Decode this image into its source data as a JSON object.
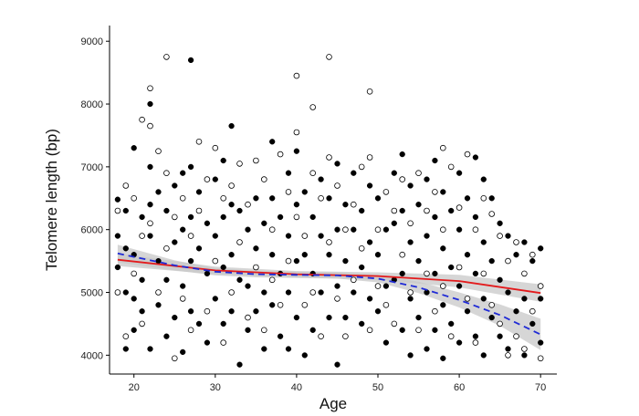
{
  "chart_data": {
    "type": "scatter",
    "xlabel": "Age",
    "ylabel": "Telomere length (bp)",
    "xlim": [
      17,
      72
    ],
    "ylim": [
      3700,
      9250
    ],
    "xticks": [
      20,
      30,
      40,
      50,
      60,
      70
    ],
    "yticks": [
      4000,
      5000,
      6000,
      7000,
      8000,
      9000
    ],
    "grid": false,
    "series": [
      {
        "marker": "filled-circle",
        "color": "#000000",
        "points": [
          [
            18,
            6480
          ],
          [
            18,
            5900
          ],
          [
            18,
            5400
          ],
          [
            19,
            6300
          ],
          [
            19,
            5700
          ],
          [
            19,
            5000
          ],
          [
            19,
            4100
          ],
          [
            20,
            7300
          ],
          [
            20,
            5600
          ],
          [
            20,
            4900
          ],
          [
            20,
            4400
          ],
          [
            21,
            6200
          ],
          [
            21,
            5200
          ],
          [
            21,
            4700
          ],
          [
            22,
            8000
          ],
          [
            22,
            7000
          ],
          [
            22,
            6400
          ],
          [
            22,
            5900
          ],
          [
            22,
            4100
          ],
          [
            23,
            6600
          ],
          [
            23,
            5500
          ],
          [
            23,
            4800
          ],
          [
            24,
            6300
          ],
          [
            24,
            5200
          ],
          [
            24,
            4300
          ],
          [
            25,
            6700
          ],
          [
            25,
            5800
          ],
          [
            25,
            4600
          ],
          [
            26,
            6900
          ],
          [
            26,
            6000
          ],
          [
            26,
            5100
          ],
          [
            26,
            4050
          ],
          [
            27,
            8700
          ],
          [
            27,
            7000
          ],
          [
            27,
            6200
          ],
          [
            27,
            5500
          ],
          [
            27,
            4700
          ],
          [
            28,
            6600
          ],
          [
            28,
            5700
          ],
          [
            28,
            4500
          ],
          [
            29,
            6100
          ],
          [
            29,
            5300
          ],
          [
            29,
            4200
          ],
          [
            30,
            6800
          ],
          [
            30,
            5900
          ],
          [
            30,
            4900
          ],
          [
            31,
            7100
          ],
          [
            31,
            6200
          ],
          [
            31,
            5400
          ],
          [
            31,
            4500
          ],
          [
            32,
            7650
          ],
          [
            32,
            6400
          ],
          [
            32,
            5600
          ],
          [
            32,
            4700
          ],
          [
            33,
            6300
          ],
          [
            33,
            5200
          ],
          [
            33,
            3850
          ],
          [
            34,
            6000
          ],
          [
            34,
            5100
          ],
          [
            34,
            4400
          ],
          [
            35,
            6500
          ],
          [
            35,
            5700
          ],
          [
            35,
            4700
          ],
          [
            36,
            6100
          ],
          [
            36,
            5000
          ],
          [
            36,
            4100
          ],
          [
            37,
            7400
          ],
          [
            37,
            6500
          ],
          [
            37,
            5600
          ],
          [
            37,
            4800
          ],
          [
            38,
            6200
          ],
          [
            38,
            5300
          ],
          [
            38,
            4300
          ],
          [
            39,
            6900
          ],
          [
            39,
            5900
          ],
          [
            39,
            5000
          ],
          [
            39,
            4100
          ],
          [
            40,
            7250
          ],
          [
            40,
            6400
          ],
          [
            40,
            5500
          ],
          [
            40,
            4600
          ],
          [
            41,
            6600
          ],
          [
            41,
            5600
          ],
          [
            41,
            4000
          ],
          [
            42,
            6200
          ],
          [
            42,
            5300
          ],
          [
            42,
            4400
          ],
          [
            43,
            6800
          ],
          [
            43,
            5900
          ],
          [
            43,
            5000
          ],
          [
            44,
            6500
          ],
          [
            44,
            5600
          ],
          [
            44,
            4600
          ],
          [
            45,
            7050
          ],
          [
            45,
            6000
          ],
          [
            45,
            5100
          ],
          [
            45,
            3850
          ],
          [
            46,
            6400
          ],
          [
            46,
            5500
          ],
          [
            46,
            4600
          ],
          [
            47,
            6900
          ],
          [
            47,
            6000
          ],
          [
            47,
            5000
          ],
          [
            48,
            6300
          ],
          [
            48,
            5400
          ],
          [
            48,
            4500
          ],
          [
            49,
            6700
          ],
          [
            49,
            5800
          ],
          [
            49,
            4900
          ],
          [
            50,
            6500
          ],
          [
            50,
            5600
          ],
          [
            50,
            4700
          ],
          [
            51,
            6000
          ],
          [
            51,
            5100
          ],
          [
            51,
            4200
          ],
          [
            52,
            6900
          ],
          [
            52,
            6100
          ],
          [
            52,
            5200
          ],
          [
            53,
            7200
          ],
          [
            53,
            6300
          ],
          [
            53,
            5300
          ],
          [
            53,
            4400
          ],
          [
            54,
            6700
          ],
          [
            54,
            5800
          ],
          [
            54,
            4900
          ],
          [
            54,
            4000
          ],
          [
            55,
            6400
          ],
          [
            55,
            5500
          ],
          [
            55,
            4600
          ],
          [
            56,
            6800
          ],
          [
            56,
            5900
          ],
          [
            56,
            5000
          ],
          [
            56,
            4100
          ],
          [
            57,
            7100
          ],
          [
            57,
            6200
          ],
          [
            57,
            5300
          ],
          [
            57,
            4400
          ],
          [
            58,
            6600
          ],
          [
            58,
            5700
          ],
          [
            58,
            4800
          ],
          [
            58,
            3950
          ],
          [
            59,
            6300
          ],
          [
            59,
            5400
          ],
          [
            59,
            4500
          ],
          [
            60,
            6900
          ],
          [
            60,
            6000
          ],
          [
            60,
            5100
          ],
          [
            60,
            4200
          ],
          [
            61,
            6500
          ],
          [
            61,
            5600
          ],
          [
            61,
            4700
          ],
          [
            62,
            7150
          ],
          [
            62,
            6200
          ],
          [
            62,
            5300
          ],
          [
            62,
            4300
          ],
          [
            63,
            6800
          ],
          [
            63,
            5800
          ],
          [
            63,
            4900
          ],
          [
            63,
            4000
          ],
          [
            64,
            6500
          ],
          [
            64,
            5500
          ],
          [
            64,
            4600
          ],
          [
            65,
            6100
          ],
          [
            65,
            5200
          ],
          [
            65,
            4300
          ],
          [
            66,
            5900
          ],
          [
            66,
            5000
          ],
          [
            66,
            4100
          ],
          [
            67,
            5600
          ],
          [
            67,
            4700
          ],
          [
            68,
            5800
          ],
          [
            68,
            4900
          ],
          [
            68,
            4000
          ],
          [
            69,
            5500
          ],
          [
            69,
            4500
          ],
          [
            70,
            5700
          ],
          [
            70,
            4900
          ],
          [
            70,
            4200
          ]
        ]
      },
      {
        "marker": "open-circle",
        "color": "#000000",
        "points": [
          [
            18,
            6300
          ],
          [
            18,
            5000
          ],
          [
            19,
            6700
          ],
          [
            19,
            4300
          ],
          [
            20,
            6500
          ],
          [
            20,
            5300
          ],
          [
            21,
            7750
          ],
          [
            21,
            5900
          ],
          [
            21,
            4500
          ],
          [
            22,
            8250
          ],
          [
            22,
            7650
          ],
          [
            22,
            6100
          ],
          [
            23,
            7250
          ],
          [
            23,
            5000
          ],
          [
            24,
            8750
          ],
          [
            24,
            6900
          ],
          [
            24,
            5700
          ],
          [
            25,
            6200
          ],
          [
            25,
            3950
          ],
          [
            26,
            6500
          ],
          [
            26,
            4900
          ],
          [
            27,
            5900
          ],
          [
            27,
            4400
          ],
          [
            28,
            7400
          ],
          [
            28,
            6300
          ],
          [
            29,
            6800
          ],
          [
            29,
            4700
          ],
          [
            30,
            7300
          ],
          [
            30,
            5500
          ],
          [
            31,
            6500
          ],
          [
            31,
            4200
          ],
          [
            32,
            6700
          ],
          [
            32,
            5000
          ],
          [
            33,
            7050
          ],
          [
            33,
            5800
          ],
          [
            34,
            6400
          ],
          [
            34,
            4600
          ],
          [
            35,
            7100
          ],
          [
            35,
            5400
          ],
          [
            36,
            6800
          ],
          [
            36,
            4400
          ],
          [
            37,
            6000
          ],
          [
            37,
            5200
          ],
          [
            38,
            7200
          ],
          [
            38,
            4800
          ],
          [
            39,
            6600
          ],
          [
            39,
            5500
          ],
          [
            40,
            8450
          ],
          [
            40,
            7550
          ],
          [
            40,
            6200
          ],
          [
            41,
            5900
          ],
          [
            41,
            4800
          ],
          [
            42,
            7950
          ],
          [
            42,
            6900
          ],
          [
            42,
            5000
          ],
          [
            43,
            6500
          ],
          [
            43,
            4300
          ],
          [
            44,
            8750
          ],
          [
            44,
            7150
          ],
          [
            44,
            5800
          ],
          [
            45,
            6700
          ],
          [
            45,
            4900
          ],
          [
            46,
            6000
          ],
          [
            46,
            4300
          ],
          [
            47,
            6400
          ],
          [
            47,
            5200
          ],
          [
            48,
            7000
          ],
          [
            48,
            5700
          ],
          [
            49,
            8200
          ],
          [
            49,
            7150
          ],
          [
            49,
            4400
          ],
          [
            50,
            6000
          ],
          [
            50,
            5100
          ],
          [
            51,
            6600
          ],
          [
            51,
            4800
          ],
          [
            52,
            6300
          ],
          [
            52,
            4500
          ],
          [
            53,
            6800
          ],
          [
            53,
            5600
          ],
          [
            54,
            6100
          ],
          [
            54,
            5000
          ],
          [
            55,
            6900
          ],
          [
            55,
            4400
          ],
          [
            56,
            6300
          ],
          [
            56,
            5300
          ],
          [
            57,
            6600
          ],
          [
            57,
            4700
          ],
          [
            58,
            7300
          ],
          [
            58,
            6000
          ],
          [
            58,
            5100
          ],
          [
            59,
            7000
          ],
          [
            59,
            4300
          ],
          [
            60,
            6350
          ],
          [
            60,
            5400
          ],
          [
            61,
            7200
          ],
          [
            61,
            4900
          ],
          [
            62,
            6000
          ],
          [
            62,
            4200
          ],
          [
            63,
            6500
          ],
          [
            63,
            5300
          ],
          [
            64,
            6250
          ],
          [
            64,
            4800
          ],
          [
            65,
            5900
          ],
          [
            65,
            4500
          ],
          [
            66,
            5500
          ],
          [
            66,
            4000
          ],
          [
            67,
            5800
          ],
          [
            67,
            4300
          ],
          [
            68,
            5300
          ],
          [
            68,
            4100
          ],
          [
            69,
            5600
          ],
          [
            69,
            4700
          ],
          [
            70,
            5100
          ],
          [
            70,
            3950
          ]
        ]
      }
    ],
    "fits": [
      {
        "style": "solid",
        "color": "#e31a1c",
        "band_color": "#c8c8c8",
        "x": [
          18,
          30,
          40,
          50,
          60,
          70
        ],
        "y": [
          5520,
          5350,
          5290,
          5260,
          5180,
          4990
        ],
        "band_lower": [
          5420,
          5290,
          5240,
          5200,
          5080,
          4850
        ],
        "band_upper": [
          5620,
          5410,
          5340,
          5320,
          5280,
          5130
        ]
      },
      {
        "style": "dashed",
        "color": "#1f2ad6",
        "band_color": "#c8c8c8",
        "x": [
          18,
          25,
          30,
          35,
          40,
          45,
          50,
          55,
          60,
          65,
          70
        ],
        "y": [
          5620,
          5430,
          5330,
          5290,
          5280,
          5270,
          5220,
          5080,
          4880,
          4640,
          4330
        ],
        "band_lower": [
          5480,
          5350,
          5270,
          5240,
          5230,
          5220,
          5160,
          4990,
          4760,
          4470,
          4080
        ],
        "band_upper": [
          5760,
          5510,
          5390,
          5340,
          5330,
          5320,
          5280,
          5170,
          5000,
          4810,
          4580
        ]
      }
    ]
  }
}
